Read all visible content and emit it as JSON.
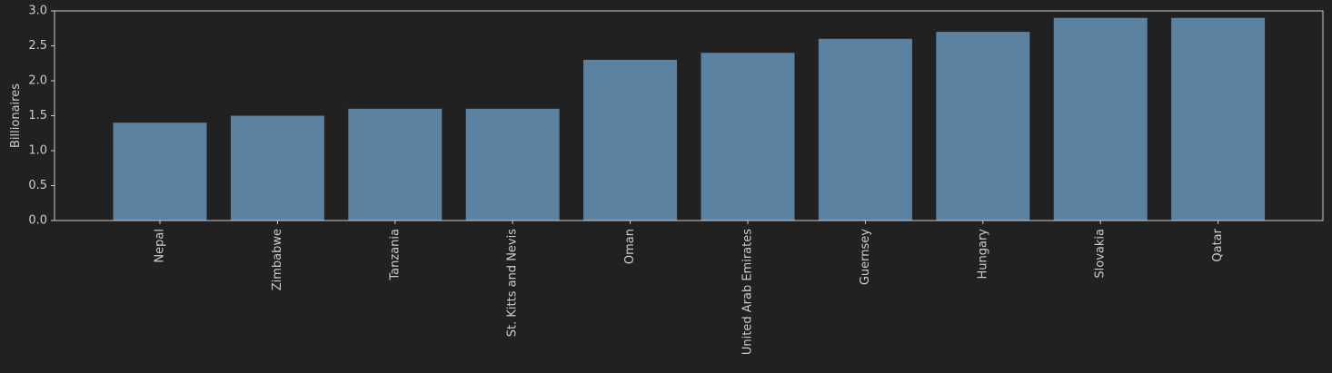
{
  "chart_data": {
    "type": "bar",
    "title": "",
    "xlabel": "",
    "ylabel": "Billionaires",
    "categories": [
      "Nepal",
      "Zimbabwe",
      "Tanzania",
      "St. Kitts and Nevis",
      "Oman",
      "United Arab Emirates",
      "Guernsey",
      "Hungary",
      "Slovakia",
      "Qatar"
    ],
    "values": [
      1.4,
      1.5,
      1.6,
      1.6,
      2.3,
      2.4,
      2.6,
      2.7,
      2.9,
      2.9
    ],
    "ylim": [
      0,
      3.0
    ],
    "yticks": [
      "0.0",
      "0.5",
      "1.0",
      "1.5",
      "2.0",
      "2.5",
      "3.0"
    ],
    "grid": false,
    "colors": {
      "background": "#212121",
      "bar": "#5b82a0",
      "axis": "#cccccc",
      "text": "#cccccc"
    }
  }
}
